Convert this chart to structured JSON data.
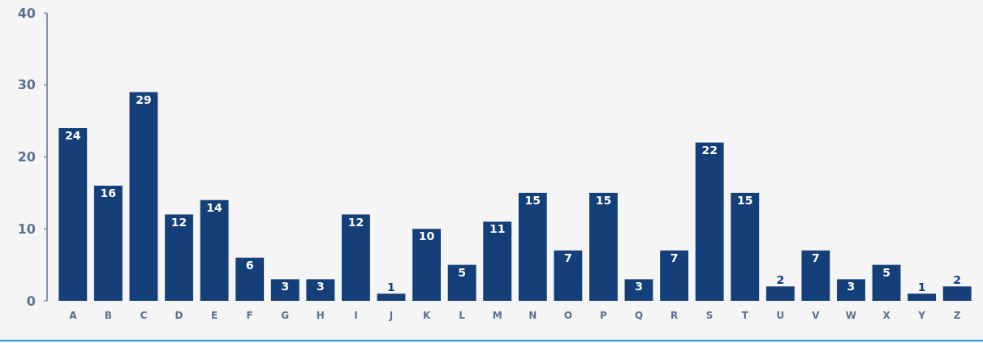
{
  "chart_data": {
    "type": "bar",
    "categories": [
      "A",
      "B",
      "C",
      "D",
      "E",
      "F",
      "G",
      "H",
      "I",
      "J",
      "K",
      "L",
      "M",
      "N",
      "O",
      "P",
      "Q",
      "R",
      "S",
      "T",
      "U",
      "V",
      "W",
      "X",
      "Y",
      "Z"
    ],
    "values": [
      24,
      16,
      29,
      12,
      14,
      6,
      3,
      3,
      12,
      1,
      10,
      5,
      11,
      15,
      7,
      15,
      3,
      7,
      22,
      15,
      2,
      7,
      3,
      5,
      1,
      2
    ],
    "color": "#143f78",
    "ylim": [
      0,
      40
    ],
    "yticks": [
      0,
      10,
      20,
      30,
      40
    ],
    "data_labels": true
  }
}
